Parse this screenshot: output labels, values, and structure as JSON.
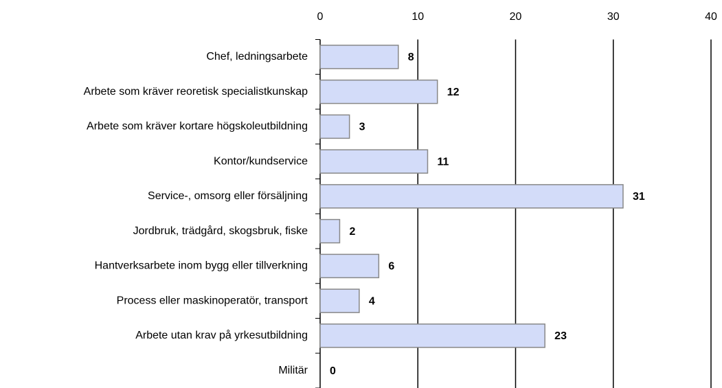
{
  "chart_data": {
    "type": "barh",
    "categories": [
      "Chef, ledningsarbete",
      "Arbete som kräver reoretisk specialistkunskap",
      "Arbete som kräver kortare högskoleutbildning",
      "Kontor/kundservice",
      "Service-, omsorg eller försäljning",
      "Jordbruk, trädgård, skogsbruk, fiske",
      "Hantverksarbete inom bygg eller tillverkning",
      "Process eller maskinoperatör, transport",
      "Arbete utan krav på yrkesutbildning",
      "Militär"
    ],
    "values": [
      8,
      12,
      3,
      11,
      31,
      2,
      6,
      4,
      23,
      0
    ],
    "color": "#d3dcf9",
    "xlim": [
      0,
      40
    ],
    "xticks": [
      0,
      10,
      20,
      30,
      40
    ],
    "grid": true
  }
}
